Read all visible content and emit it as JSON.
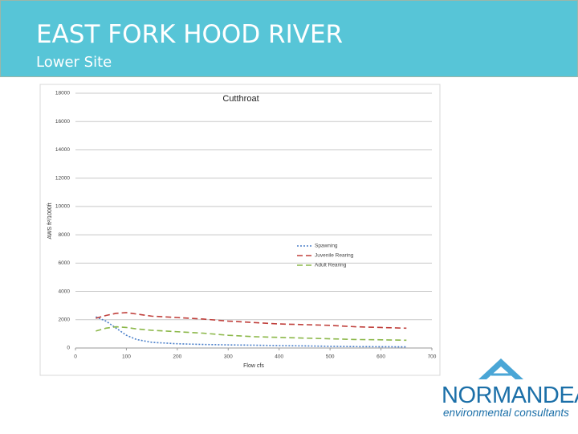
{
  "header": {
    "title": "EAST FORK HOOD RIVER",
    "subtitle": "Lower Site"
  },
  "logo": {
    "name": "NORMANDEAU",
    "tagline": "environmental consultants"
  },
  "chart_data": {
    "type": "line",
    "title": "Cutthroat",
    "x_label": "Flow cfs",
    "y_label": "AWS ft²/1000ft",
    "x": [
      40,
      60,
      80,
      100,
      120,
      150,
      200,
      250,
      300,
      350,
      400,
      450,
      500,
      550,
      600,
      650
    ],
    "series": [
      {
        "name": "Spawning",
        "color": "#4a7fc9",
        "dash": "2 2",
        "values": [
          2200,
          1900,
          1400,
          900,
          600,
          400,
          300,
          250,
          220,
          200,
          170,
          150,
          120,
          100,
          90,
          80
        ]
      },
      {
        "name": "Juvenile Rearing",
        "color": "#c0403c",
        "dash": "7 4",
        "values": [
          2100,
          2300,
          2450,
          2500,
          2400,
          2250,
          2150,
          2050,
          1900,
          1800,
          1700,
          1650,
          1600,
          1500,
          1450,
          1400
        ]
      },
      {
        "name": "Adult Rearing",
        "color": "#8cb84a",
        "dash": "7 4",
        "values": [
          1200,
          1400,
          1500,
          1450,
          1350,
          1250,
          1150,
          1050,
          900,
          800,
          750,
          700,
          650,
          600,
          580,
          550
        ]
      }
    ],
    "xlim": [
      0,
      700
    ],
    "xticks": [
      0,
      100,
      200,
      300,
      400,
      500,
      600,
      700
    ],
    "ylim": [
      0,
      18000
    ],
    "yticks": [
      0,
      2000,
      4000,
      6000,
      8000,
      10000,
      12000,
      14000,
      16000,
      18000
    ],
    "grid": true
  }
}
